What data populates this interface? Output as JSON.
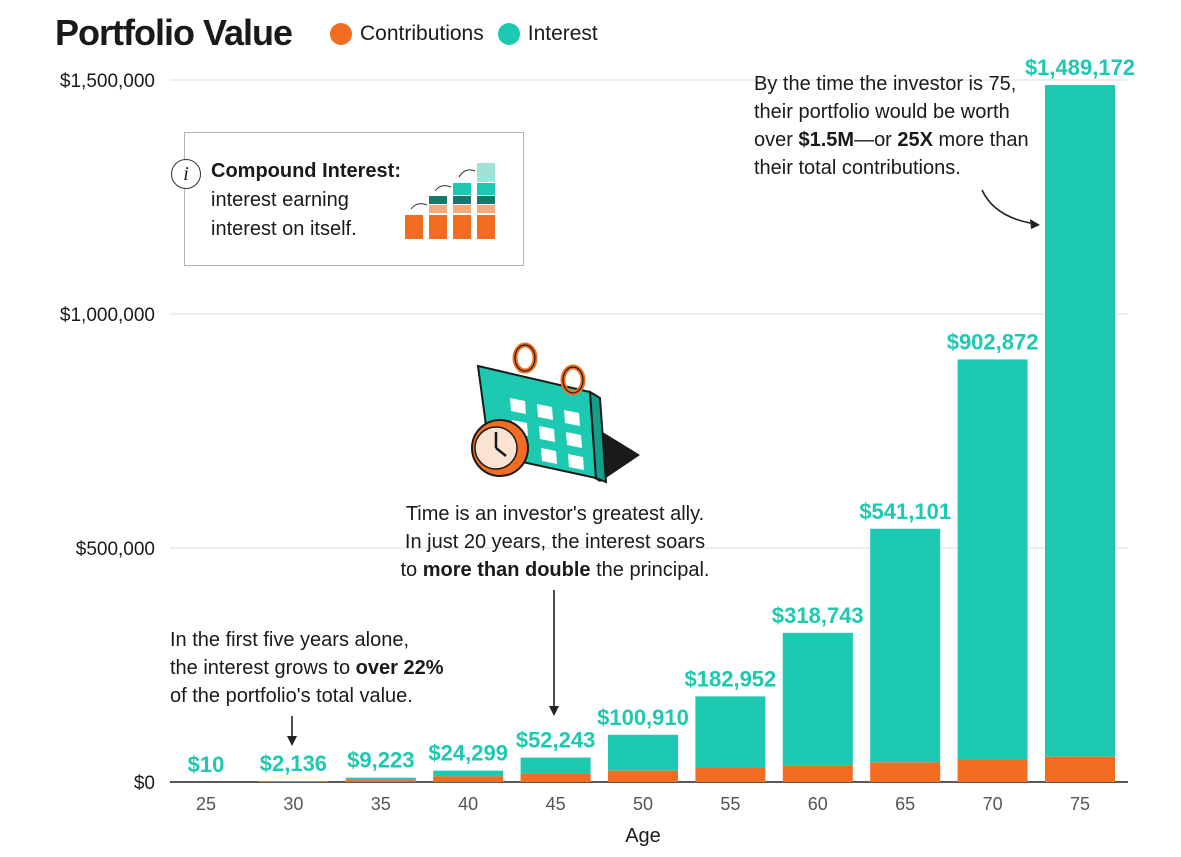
{
  "header": {
    "title": "Portfolio Value"
  },
  "legend": [
    {
      "label": "Contributions",
      "color": "#f26c22"
    },
    {
      "label": "Interest",
      "color": "#1dc9b0"
    }
  ],
  "info_box": {
    "heading": "Compound Interest:",
    "line1": "interest earning",
    "line2": "interest on itself."
  },
  "annotations": {
    "top_right": {
      "line1": "By the time the investor is 75,",
      "line2": "their portfolio would be worth",
      "line3_pre": "over ",
      "line3_b1": "$1.5M",
      "line3_mid": "—or ",
      "line3_b2": "25X",
      "line3_post": " more than",
      "line4": "their total contributions."
    },
    "middle": {
      "line1": "Time is an investor's greatest ally.",
      "line2": "In just 20 years, the interest soars",
      "line3_pre": "to ",
      "line3_b": "more than double",
      "line3_post": " the principal."
    },
    "left": {
      "line1": "In the first five years alone,",
      "line2_pre": "the interest grows to ",
      "line2_b": "over 22%",
      "line3": "of the portfolio's total value."
    }
  },
  "chart_data": {
    "type": "bar",
    "stacked": true,
    "categories": [
      "25",
      "30",
      "35",
      "40",
      "45",
      "50",
      "55",
      "60",
      "65",
      "70",
      "75"
    ],
    "series": [
      {
        "name": "Contributions",
        "values": [
          10,
          1660,
          6000,
          12000,
          18000,
          24000,
          30000,
          36000,
          42000,
          48000,
          54000
        ]
      },
      {
        "name": "Interest",
        "values": [
          0,
          476,
          3223,
          12299,
          34243,
          76910,
          152952,
          282743,
          499101,
          854872,
          1435172
        ]
      }
    ],
    "value_labels": [
      "$10",
      "$2,136",
      "$9,223",
      "$24,299",
      "$52,243",
      "$100,910",
      "$182,952",
      "$318,743",
      "$541,101",
      "$902,872",
      "$1,489,172"
    ],
    "totals": [
      10,
      2136,
      9223,
      24299,
      52243,
      100910,
      182952,
      318743,
      541101,
      902872,
      1489172
    ],
    "xlabel": "Age",
    "ylabel": "",
    "ylim": [
      0,
      1500000
    ],
    "yticks": [
      0,
      500000,
      1000000,
      1500000
    ],
    "ytick_labels": [
      "$0",
      "$500,000",
      "$1,000,000",
      "$1,500,000"
    ],
    "grid": true,
    "colors": {
      "contributions": "#f26c22",
      "interest": "#1dc9b0",
      "grid": "#dddddd",
      "axis": "#222222"
    }
  }
}
